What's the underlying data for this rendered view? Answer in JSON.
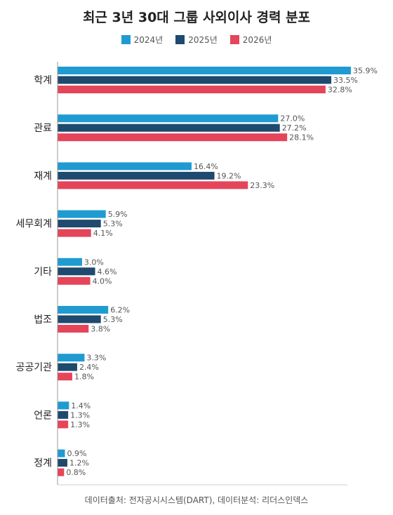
{
  "chart_data": {
    "type": "bar",
    "orientation": "horizontal",
    "title": "최근 3년 30대 그룹 사외이사 경력 분포",
    "categories": [
      "학계",
      "관료",
      "재계",
      "세무회계",
      "기타",
      "법조",
      "공공기관",
      "언론",
      "정계"
    ],
    "series": [
      {
        "name": "2024년",
        "color": "#1f9bd1",
        "values": [
          35.9,
          27.0,
          16.4,
          5.9,
          3.0,
          6.2,
          3.3,
          1.4,
          0.9
        ]
      },
      {
        "name": "2025년",
        "color": "#1d4a6e",
        "values": [
          33.5,
          27.2,
          19.2,
          5.3,
          4.6,
          5.3,
          2.4,
          1.3,
          1.2
        ]
      },
      {
        "name": "2026년",
        "color": "#e5455a",
        "values": [
          32.8,
          28.1,
          23.3,
          4.1,
          4.0,
          3.8,
          1.8,
          1.3,
          0.8
        ]
      }
    ],
    "value_suffix": "%",
    "xlim": [
      0,
      35.9
    ],
    "legend_position": "top-center",
    "grid": false
  },
  "source": "데이터출처: 전자공시시스템(DART), 데이터분석: 리더스인덱스"
}
